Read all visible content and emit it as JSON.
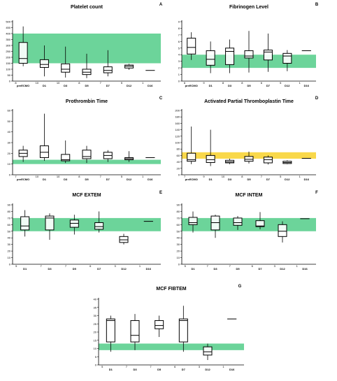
{
  "chart_data": [
    {
      "type": "box",
      "title": "Platelet count",
      "panel_letter": "A",
      "categories": [
        "preECMO",
        "D1",
        "D3",
        "D5",
        "D7",
        "D12",
        "D16"
      ],
      "n": [
        "8",
        "10",
        "10",
        "8",
        "7",
        "5",
        "1"
      ],
      "ylim": [
        0,
        500
      ],
      "yticks": [
        0,
        50,
        100,
        150,
        200,
        250,
        300,
        350,
        400,
        450,
        500
      ],
      "reference_band": {
        "from": 150,
        "to": 400,
        "color": "#6cd49a"
      },
      "boxes": [
        {
          "min": 125,
          "q1": 150,
          "median": 190,
          "q3": 325,
          "max": 460
        },
        {
          "min": 40,
          "q1": 115,
          "median": 140,
          "q3": 180,
          "max": 300
        },
        {
          "min": 30,
          "q1": 75,
          "median": 100,
          "q3": 145,
          "max": 290
        },
        {
          "min": 25,
          "q1": 55,
          "median": 75,
          "q3": 100,
          "max": 230
        },
        {
          "min": 40,
          "q1": 70,
          "median": 90,
          "q3": 120,
          "max": 260
        },
        {
          "min": 95,
          "q1": 110,
          "median": 125,
          "q3": 135,
          "max": 145
        },
        {
          "single": 90
        }
      ]
    },
    {
      "type": "box",
      "title": "Fibrinogen Level",
      "panel_letter": "B",
      "categories": [
        "preECMO",
        "D1",
        "D3",
        "D5",
        "D7",
        "D12",
        "D16"
      ],
      "n": [
        "6",
        "9",
        "8",
        "8",
        "6",
        "5",
        "1"
      ],
      "ylim": [
        0,
        9
      ],
      "yticks": [
        0,
        1,
        2,
        3,
        4,
        5,
        6,
        7,
        8,
        9
      ],
      "reference_band": {
        "from": 2,
        "to": 4,
        "color": "#6cd49a"
      },
      "boxes": [
        {
          "min": 3.2,
          "q1": 4.1,
          "median": 5.1,
          "q3": 6.5,
          "max": 7.4
        },
        {
          "min": 1.2,
          "q1": 2.4,
          "median": 3.3,
          "q3": 4.6,
          "max": 6.0
        },
        {
          "min": 1.2,
          "q1": 2.5,
          "median": 4.5,
          "q3": 5.0,
          "max": 6.3
        },
        {
          "min": 1.3,
          "q1": 3.5,
          "median": 3.8,
          "q3": 4.6,
          "max": 7.6
        },
        {
          "min": 1.4,
          "q1": 3.2,
          "median": 4.4,
          "q3": 4.7,
          "max": 7.2
        },
        {
          "min": 1.5,
          "q1": 2.7,
          "median": 3.8,
          "q3": 4.2,
          "max": 4.7
        },
        {
          "single": 4.6
        }
      ]
    },
    {
      "type": "box",
      "title": "Prothrombin Time",
      "panel_letter": "C",
      "categories": [
        "preECMO",
        "D1",
        "D3",
        "D5",
        "D7",
        "D12",
        "D16"
      ],
      "n": [
        "7",
        "10",
        "10",
        "8",
        "7",
        "5",
        "1"
      ],
      "ylim": [
        0,
        60
      ],
      "yticks": [
        0,
        10,
        20,
        30,
        40,
        50,
        60
      ],
      "reference_band": {
        "from": 10,
        "to": 14,
        "color": "#6cd49a"
      },
      "boxes": [
        {
          "min": 12,
          "q1": 17,
          "median": 20,
          "q3": 23,
          "max": 27
        },
        {
          "min": 13,
          "q1": 16,
          "median": 21,
          "q3": 27,
          "max": 57
        },
        {
          "min": 11,
          "q1": 13,
          "median": 14,
          "q3": 19,
          "max": 32
        },
        {
          "min": 11,
          "q1": 15,
          "median": 17,
          "q3": 23,
          "max": 27
        },
        {
          "min": 12,
          "q1": 15,
          "median": 18,
          "q3": 21,
          "max": 23
        },
        {
          "min": 12,
          "q1": 14,
          "median": 15,
          "q3": 16,
          "max": 22
        },
        {
          "single": 16
        }
      ]
    },
    {
      "type": "box",
      "title": "Activated Partial Thromboplastin Time",
      "panel_letter": "D",
      "categories": [
        "preECMO",
        "D1",
        "D3",
        "D5",
        "D7",
        "D12",
        "D16"
      ],
      "n": [
        "7",
        "9",
        "10",
        "8",
        "7",
        "5",
        "1"
      ],
      "ylim": [
        0,
        200
      ],
      "yticks": [
        0,
        20,
        40,
        60,
        80,
        100,
        120,
        140,
        160,
        180,
        200
      ],
      "reference_band": {
        "from": 50,
        "to": 70,
        "color": "#f9d84a"
      },
      "boxes": [
        {
          "min": 33,
          "q1": 42,
          "median": 47,
          "q3": 67,
          "max": 150
        },
        {
          "min": 27,
          "q1": 38,
          "median": 47,
          "q3": 60,
          "max": 140
        },
        {
          "min": 33,
          "q1": 37,
          "median": 40,
          "q3": 45,
          "max": 50
        },
        {
          "min": 35,
          "q1": 42,
          "median": 48,
          "q3": 57,
          "max": 72
        },
        {
          "min": 32,
          "q1": 37,
          "median": 47,
          "q3": 55,
          "max": 60
        },
        {
          "min": 33,
          "q1": 35,
          "median": 38,
          "q3": 42,
          "max": 45
        },
        {
          "single": 51
        }
      ]
    },
    {
      "type": "box",
      "title": "MCF EXTEM",
      "panel_letter": "E",
      "categories": [
        "D1",
        "D3",
        "D5",
        "D7",
        "D12",
        "D16"
      ],
      "n": [
        "5",
        "7",
        "7",
        "6",
        "3",
        "1"
      ],
      "ylim": [
        0,
        90
      ],
      "yticks": [
        0,
        10,
        20,
        30,
        40,
        50,
        60,
        70,
        80,
        90
      ],
      "reference_band": {
        "from": 50,
        "to": 70,
        "color": "#6cd49a"
      },
      "boxes": [
        {
          "min": 42,
          "q1": 52,
          "median": 58,
          "q3": 72,
          "max": 82
        },
        {
          "min": 37,
          "q1": 52,
          "median": 70,
          "q3": 73,
          "max": 77
        },
        {
          "min": 45,
          "q1": 56,
          "median": 62,
          "q3": 67,
          "max": 75
        },
        {
          "min": 48,
          "q1": 53,
          "median": 57,
          "q3": 63,
          "max": 80
        },
        {
          "min": 30,
          "q1": 33,
          "median": 37,
          "q3": 42,
          "max": 46
        },
        {
          "single": 65
        }
      ]
    },
    {
      "type": "box",
      "title": "MCF INTEM",
      "panel_letter": "F",
      "categories": [
        "D1",
        "D3",
        "D5",
        "D7",
        "D12",
        "D16"
      ],
      "n": [
        "5",
        "7",
        "7",
        "6",
        "3",
        "1"
      ],
      "ylim": [
        0,
        90
      ],
      "yticks": [
        0,
        10,
        20,
        30,
        40,
        50,
        60,
        70,
        80,
        90
      ],
      "reference_band": {
        "from": 50,
        "to": 70,
        "color": "#6cd49a"
      },
      "boxes": [
        {
          "min": 48,
          "q1": 60,
          "median": 63,
          "q3": 71,
          "max": 80
        },
        {
          "min": 40,
          "q1": 52,
          "median": 63,
          "q3": 73,
          "max": 75
        },
        {
          "min": 52,
          "q1": 59,
          "median": 63,
          "q3": 70,
          "max": 73
        },
        {
          "min": 53,
          "q1": 57,
          "median": 58,
          "q3": 66,
          "max": 79
        },
        {
          "min": 33,
          "q1": 42,
          "median": 50,
          "q3": 60,
          "max": 65
        },
        {
          "single": 69
        }
      ]
    },
    {
      "type": "box",
      "title": "MCF FIBTEM",
      "panel_letter": "G",
      "categories": [
        "D1",
        "D3",
        "D5",
        "D7",
        "D12",
        "D16"
      ],
      "n": [
        "5",
        "7",
        "7",
        "6",
        "3",
        "1"
      ],
      "ylim": [
        0,
        40
      ],
      "yticks": [
        0,
        5,
        10,
        15,
        20,
        25,
        30,
        35,
        40
      ],
      "reference_band": {
        "from": 9,
        "to": 13,
        "color": "#6cd49a"
      },
      "boxes": [
        {
          "min": 8,
          "q1": 14,
          "median": 27,
          "q3": 28,
          "max": 30
        },
        {
          "min": 9,
          "q1": 14,
          "median": 18,
          "q3": 27,
          "max": 31
        },
        {
          "min": 17,
          "q1": 22,
          "median": 24,
          "q3": 27,
          "max": 30
        },
        {
          "min": 8,
          "q1": 14,
          "median": 27,
          "q3": 28,
          "max": 36
        },
        {
          "min": 3,
          "q1": 6,
          "median": 8,
          "q3": 11,
          "max": 13
        },
        {
          "single": 28
        }
      ]
    }
  ]
}
